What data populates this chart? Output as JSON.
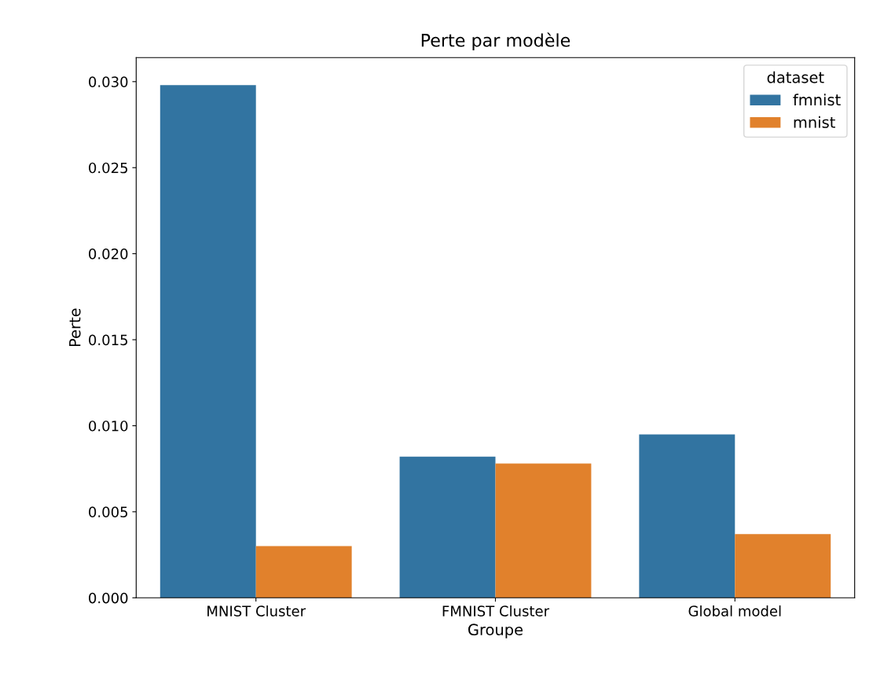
{
  "chart_data": {
    "type": "bar",
    "title": "Perte par modèle",
    "xlabel": "Groupe",
    "ylabel": "Perte",
    "legend_title": "dataset",
    "categories": [
      "MNIST Cluster",
      "FMNIST Cluster",
      "Global model"
    ],
    "series": [
      {
        "name": "fmnist",
        "color": "#3274a1",
        "values": [
          0.0298,
          0.0082,
          0.0095
        ]
      },
      {
        "name": "mnist",
        "color": "#e1812c",
        "values": [
          0.003,
          0.0078,
          0.0037
        ]
      }
    ],
    "ylim": [
      0,
      0.0314
    ],
    "yticks": [
      {
        "value": 0,
        "label": "0.000"
      },
      {
        "value": 0.005,
        "label": "0.005"
      },
      {
        "value": 0.01,
        "label": "0.010"
      },
      {
        "value": 0.015,
        "label": "0.015"
      },
      {
        "value": 0.02,
        "label": "0.020"
      },
      {
        "value": 0.025,
        "label": "0.025"
      },
      {
        "value": 0.03,
        "label": "0.030"
      }
    ],
    "legend": "top right",
    "grid": false
  }
}
